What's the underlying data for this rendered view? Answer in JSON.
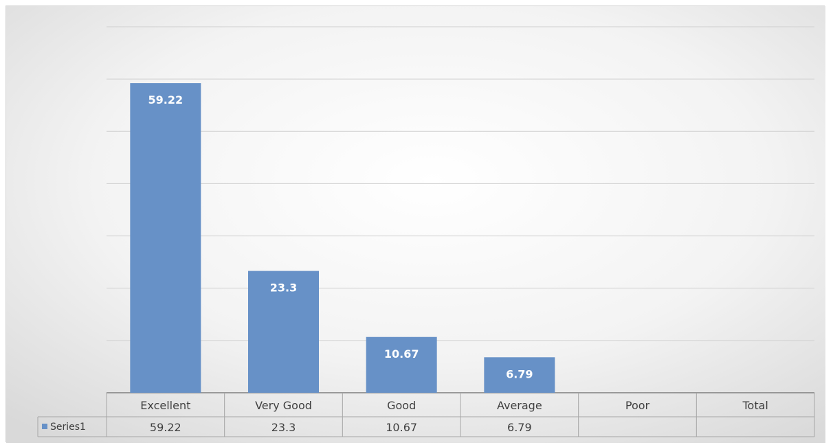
{
  "chart_data": {
    "type": "bar",
    "categories": [
      "Excellent",
      "Very Good",
      "Good",
      "Average",
      "Poor",
      "Total"
    ],
    "series": [
      {
        "name": "Series1",
        "values": [
          59.22,
          23.3,
          10.67,
          6.79,
          null,
          null
        ]
      }
    ],
    "value_labels": [
      "59.22",
      "23.3",
      "10.67",
      "6.79",
      "",
      ""
    ],
    "ylim": [
      0,
      70
    ],
    "grid": true,
    "legend_position": "data-table",
    "data_table": true,
    "colors": {
      "bar": "#6791c7",
      "gridline": "#d0d0d0",
      "table_border": "#a6a6a6",
      "text": "#404040",
      "label": "#ffffff"
    }
  }
}
